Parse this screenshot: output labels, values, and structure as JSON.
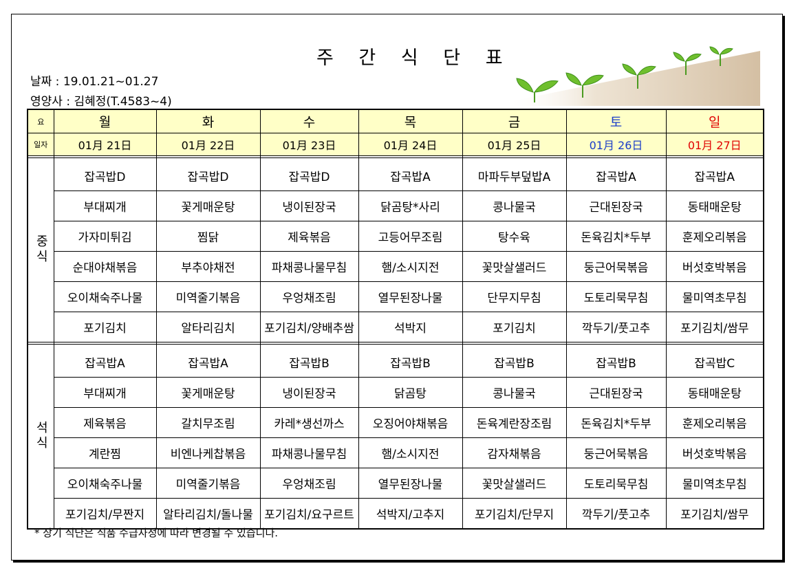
{
  "title": "주 간 식 단 표",
  "date_line": "날짜 : 19.01.21~01.27",
  "dietitian_line": "영양사 : 김혜정(T.4583~4)",
  "header": {
    "day_label": "요",
    "date_label": "일자",
    "days": [
      "월",
      "화",
      "수",
      "목",
      "금",
      "토",
      "일"
    ],
    "dates": [
      "01月 21日",
      "01月 22日",
      "01月 23日",
      "01月 24日",
      "01月 25日",
      "01月 26日",
      "01月 27日"
    ]
  },
  "colors": {
    "header_bg": "#ffffc7",
    "saturday": "#1a3cc8",
    "sunday": "#e00000"
  },
  "lunch": {
    "label": "중식",
    "rows": [
      [
        "잡곡밥D",
        "잡곡밥D",
        "잡곡밥D",
        "잡곡밥A",
        "마파두부덮밥A",
        "잡곡밥A",
        "잡곡밥A"
      ],
      [
        "부대찌개",
        "꽃게매운탕",
        "냉이된장국",
        "닭곰탕*사리",
        "콩나물국",
        "근대된장국",
        "동태매운탕"
      ],
      [
        "가자미튀김",
        "찜닭",
        "제육볶음",
        "고등어무조림",
        "탕수육",
        "돈육김치*두부",
        "훈제오리볶음"
      ],
      [
        "순대야채볶음",
        "부추야채전",
        "파채콩나물무침",
        "햄/소시지전",
        "꽃맛살샐러드",
        "둥근어묵볶음",
        "버섯호박볶음"
      ],
      [
        "오이채숙주나물",
        "미역줄기볶음",
        "우엉채조림",
        "열무된장나물",
        "단무지무침",
        "도토리묵무침",
        "물미역초무침"
      ],
      [
        "포기김치",
        "알타리김치",
        "포기김치/양배추쌈",
        "석박지",
        "포기김치",
        "깍두기/풋고추",
        "포기김치/쌈무"
      ]
    ]
  },
  "dinner": {
    "label": "석식",
    "rows": [
      [
        "잡곡밥A",
        "잡곡밥A",
        "잡곡밥B",
        "잡곡밥B",
        "잡곡밥B",
        "잡곡밥B",
        "잡곡밥C"
      ],
      [
        "부대찌개",
        "꽃게매운탕",
        "냉이된장국",
        "닭곰탕",
        "콩나물국",
        "근대된장국",
        "동태매운탕"
      ],
      [
        "제육볶음",
        "갈치무조림",
        "카레*생선까스",
        "오징어야채볶음",
        "돈육계란장조림",
        "돈육김치*두부",
        "훈제오리볶음"
      ],
      [
        "계란찜",
        "비엔나케찹볶음",
        "파채콩나물무침",
        "햄/소시지전",
        "감자채볶음",
        "둥근어묵볶음",
        "버섯호박볶음"
      ],
      [
        "오이채숙주나물",
        "미역줄기볶음",
        "우엉채조림",
        "열무된장나물",
        "꽃맛살샐러드",
        "도토리묵무침",
        "물미역초무침"
      ],
      [
        "포기김치/무짠지",
        "알타리김치/돌나물",
        "포기김치/요구르트",
        "석박지/고추지",
        "포기김치/단무지",
        "깍두기/풋고추",
        "포기김치/쌈무"
      ]
    ]
  },
  "footnote": "* 상기 식단은 식품 수급사정에 따라 변경될 수 있습니다.",
  "decoration": "sprout-illustration"
}
